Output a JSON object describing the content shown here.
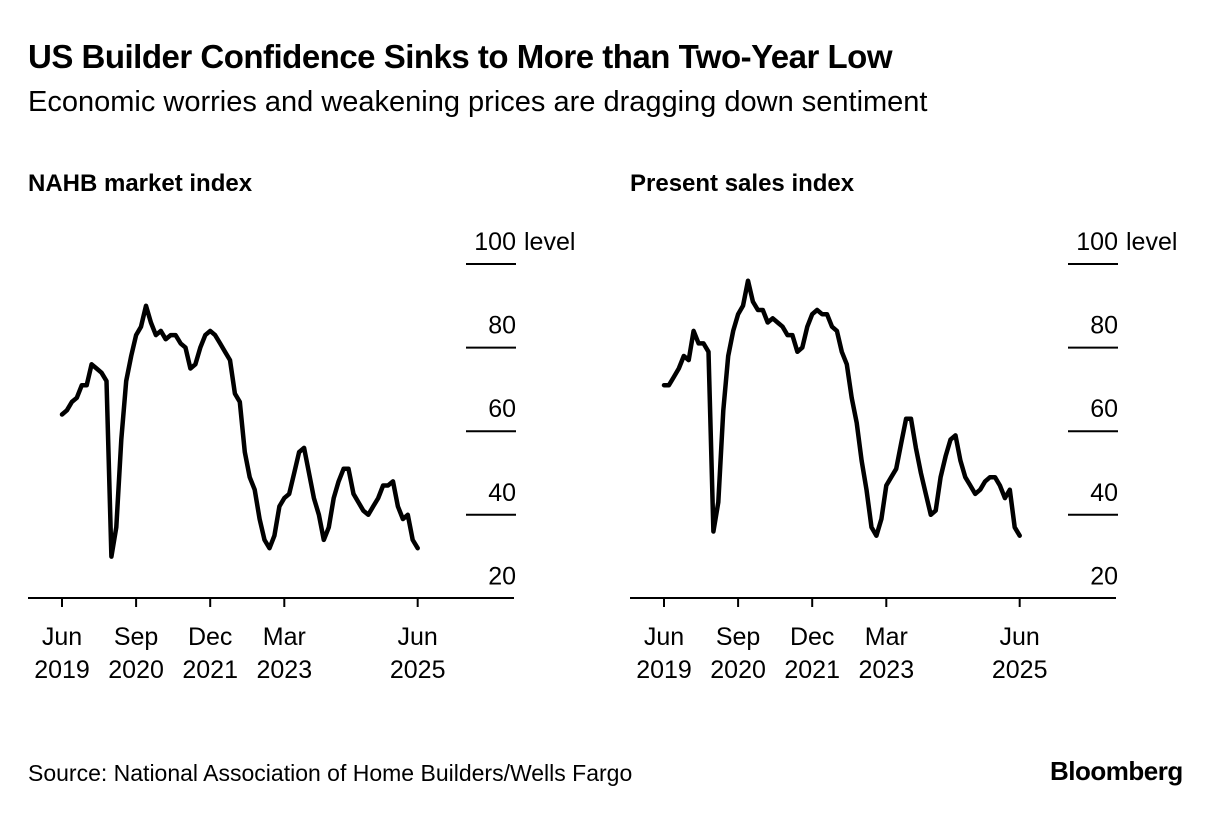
{
  "header": {
    "title": "US Builder Confidence Sinks to More than Two-Year Low",
    "subtitle": "Economic worries and weakening prices are dragging down sentiment"
  },
  "footer": {
    "source": "Source: National Association of Home Builders/Wells Fargo",
    "brand": "Bloomberg"
  },
  "colors": {
    "line": "#000000",
    "axis": "#000000",
    "background": "#ffffff"
  },
  "chart_data": [
    {
      "type": "line",
      "title": "NAHB market index",
      "y_unit": "level",
      "ylim": [
        20,
        100
      ],
      "yticks": [
        20,
        40,
        60,
        80,
        100
      ],
      "xlim": [
        "2019-06",
        "2026-06"
      ],
      "xticks": [
        {
          "x": "2019-06",
          "label": [
            "Jun",
            "2019"
          ]
        },
        {
          "x": "2020-09",
          "label": [
            "Sep",
            "2020"
          ]
        },
        {
          "x": "2021-12",
          "label": [
            "Dec",
            "2021"
          ]
        },
        {
          "x": "2023-03",
          "label": [
            "Mar",
            "2023"
          ]
        },
        {
          "x": "2025-06",
          "label": [
            "Jun",
            "2025"
          ]
        }
      ],
      "grid": "horizontal ticks only at right",
      "series": [
        {
          "start": "2019-06",
          "values": [
            64,
            65,
            67,
            68,
            71,
            71,
            76,
            75,
            74,
            72,
            30,
            37,
            58,
            72,
            78,
            83,
            85,
            90,
            86,
            83,
            84,
            82,
            83,
            83,
            81,
            80,
            75,
            76,
            80,
            83,
            84,
            83,
            81,
            79,
            77,
            69,
            67,
            55,
            49,
            46,
            39,
            34,
            32,
            35,
            42,
            44,
            45,
            50,
            55,
            56,
            50,
            44,
            40,
            34,
            37,
            44,
            48,
            51,
            51,
            45,
            43,
            41,
            40,
            42,
            44,
            47,
            47,
            48,
            42,
            39,
            40,
            34,
            32
          ]
        }
      ]
    },
    {
      "type": "line",
      "title": "Present sales index",
      "y_unit": "level",
      "ylim": [
        20,
        100
      ],
      "yticks": [
        20,
        40,
        60,
        80,
        100
      ],
      "xlim": [
        "2019-06",
        "2026-06"
      ],
      "xticks": [
        {
          "x": "2019-06",
          "label": [
            "Jun",
            "2019"
          ]
        },
        {
          "x": "2020-09",
          "label": [
            "Sep",
            "2020"
          ]
        },
        {
          "x": "2021-12",
          "label": [
            "Dec",
            "2021"
          ]
        },
        {
          "x": "2023-03",
          "label": [
            "Mar",
            "2023"
          ]
        },
        {
          "x": "2025-06",
          "label": [
            "Jun",
            "2025"
          ]
        }
      ],
      "grid": "horizontal ticks only at right",
      "series": [
        {
          "start": "2019-06",
          "values": [
            71,
            71,
            73,
            75,
            78,
            77,
            84,
            81,
            81,
            79,
            36,
            43,
            65,
            78,
            84,
            88,
            90,
            96,
            91,
            89,
            89,
            86,
            87,
            86,
            85,
            83,
            83,
            79,
            80,
            85,
            88,
            89,
            88,
            88,
            85,
            84,
            79,
            76,
            68,
            62,
            53,
            46,
            37,
            35,
            39,
            47,
            49,
            51,
            57,
            63,
            63,
            56,
            50,
            45,
            40,
            41,
            49,
            54,
            58,
            59,
            53,
            49,
            47,
            45,
            46,
            48,
            49,
            49,
            47,
            44,
            46,
            37,
            35
          ]
        }
      ]
    }
  ]
}
